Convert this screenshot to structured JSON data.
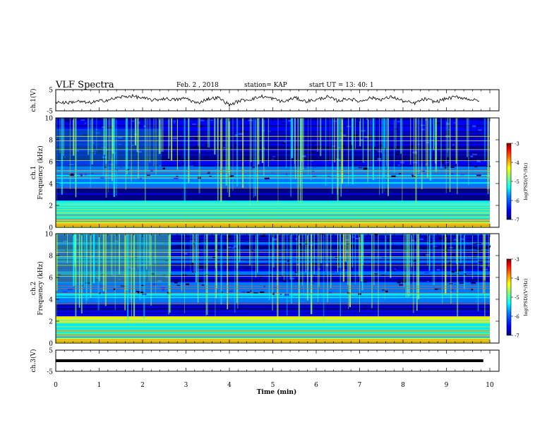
{
  "header": {
    "title": "VLF Spectra",
    "date": "Feb. 2  , 2018",
    "station": "station= KAP",
    "start_ut": "start  UT  =   13: 40: 1"
  },
  "colors": {
    "background": "#ffffff",
    "axis": "#000000",
    "colormap": [
      "#00007f",
      "#0000ff",
      "#0080ff",
      "#00ffff",
      "#80ff80",
      "#ffff00",
      "#ff8000",
      "#ff0000",
      "#7f0000"
    ]
  },
  "chart_data": [
    {
      "type": "line",
      "panel": "ch1",
      "ylabel": "ch.1(V)",
      "ylim": [
        -5,
        5
      ],
      "yticks": [
        "5",
        "-5"
      ],
      "xlim": [
        0,
        10
      ],
      "x": [
        0,
        0.25,
        0.5,
        0.75,
        1,
        1.25,
        1.5,
        1.75,
        2,
        2.25,
        2.5,
        2.75,
        3,
        3.25,
        3.5,
        3.75,
        4,
        4.25,
        4.5,
        4.75,
        5,
        5.25,
        5.5,
        5.75,
        6,
        6.25,
        6.5,
        6.75,
        7,
        7.25,
        7.5,
        7.75,
        8,
        8.25,
        8.5,
        8.75,
        9,
        9.25,
        9.5,
        9.75
      ],
      "values": [
        -0.8,
        -1.2,
        -0.5,
        -1.3,
        -0.4,
        0.3,
        1.5,
        2.0,
        1.0,
        0.0,
        0.8,
        0.2,
        1.0,
        -1.5,
        0.6,
        1.2,
        -2.2,
        -0.2,
        0.5,
        1.8,
        0.8,
        -0.8,
        1.2,
        -0.5,
        0.2,
        1.6,
        -0.3,
        0.8,
        -0.6,
        1.2,
        0.4,
        1.6,
        -0.4,
        -1.5,
        0.6,
        -0.8,
        0.8,
        1.6,
        0.6,
        -0.4
      ]
    },
    {
      "type": "heatmap",
      "panel": "ch1",
      "ylabel": "ch.1\nFrequency (kHz)",
      "ylim": [
        0,
        10
      ],
      "yticks": [
        "0",
        "2",
        "4",
        "6",
        "8",
        "10"
      ],
      "xlim": [
        0,
        10
      ],
      "zlim": [
        -7,
        -3
      ],
      "colorbar_label": "log(PSD)(V²/Hz)",
      "colorbar_ticks": [
        "-3",
        "-4",
        "-5",
        "-6",
        "-7"
      ]
    },
    {
      "type": "heatmap",
      "panel": "ch2",
      "ylabel": "ch.2\nFrequency (kHz)",
      "ylim": [
        0,
        10
      ],
      "yticks": [
        "0",
        "2",
        "4",
        "6",
        "8",
        "10"
      ],
      "xlim": [
        0,
        10
      ],
      "zlim": [
        -7,
        -3
      ],
      "colorbar_label": "log(PSD)(V²/Hz)",
      "colorbar_ticks": [
        "-3",
        "-4",
        "-5",
        "-6",
        "-7"
      ]
    },
    {
      "type": "line",
      "panel": "ch3",
      "ylabel": "ch.3(V)",
      "ylim": [
        -5,
        5
      ],
      "yticks": [
        "5",
        "-5"
      ],
      "xlim": [
        0,
        10
      ],
      "x": [
        0,
        9.85
      ],
      "values": [
        0,
        0
      ]
    }
  ],
  "xaxis": {
    "label": "Time  (min)",
    "ticks": [
      "0",
      "1",
      "2",
      "3",
      "4",
      "5",
      "6",
      "7",
      "8",
      "9",
      "10"
    ]
  }
}
